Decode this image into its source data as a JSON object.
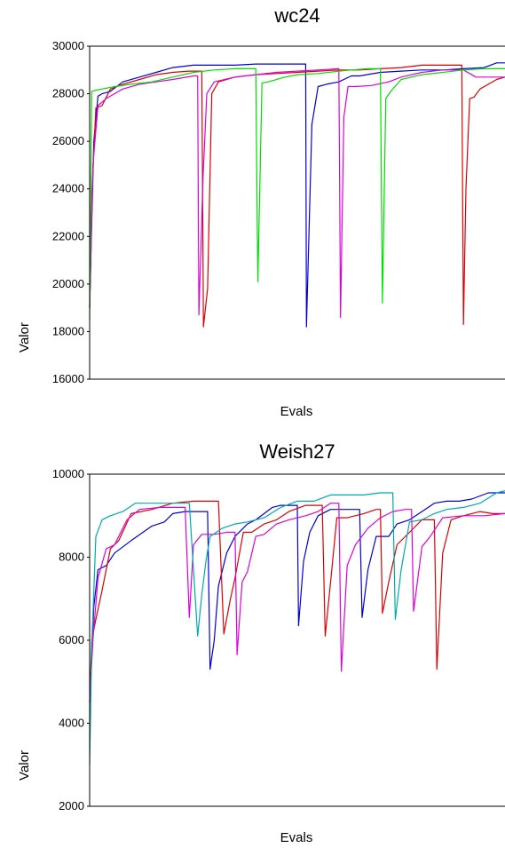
{
  "chart_data": [
    {
      "type": "line",
      "title": "wc24",
      "xlabel": "Evals",
      "ylabel": "Valor",
      "ylim": [
        16000,
        30000
      ],
      "yticks": [
        16000,
        18000,
        20000,
        22000,
        24000,
        26000,
        28000,
        30000
      ],
      "xlim": [
        0,
        100
      ],
      "grid": false,
      "series": [
        {
          "color": "#0000dd",
          "x": [
            0,
            1,
            2,
            3,
            5,
            8,
            12,
            16,
            20,
            25,
            30,
            35,
            40,
            45,
            50,
            52,
            52.2,
            53.5,
            55,
            57,
            60,
            63,
            65,
            70,
            75,
            80,
            85,
            90,
            95,
            98,
            100
          ],
          "y": [
            19000,
            26000,
            27900,
            28000,
            28100,
            28500,
            28700,
            28900,
            29100,
            29200,
            29200,
            29200,
            29250,
            29250,
            29250,
            29250,
            18200,
            26700,
            28300,
            28400,
            28500,
            28750,
            28750,
            28900,
            28950,
            29000,
            29000,
            29050,
            29100,
            29300,
            29300
          ]
        },
        {
          "color": "#dd0000",
          "x": [
            0,
            0.6,
            1.5,
            3,
            5,
            8,
            12,
            16,
            20,
            23.8,
            24,
            27,
            27.4,
            28.4,
            29.4,
            31,
            35,
            40,
            45,
            50,
            55,
            60,
            65,
            70,
            75,
            80,
            85,
            87,
            89.6,
            90,
            90.6,
            91.5,
            92.5,
            94,
            96,
            98,
            100
          ],
          "y": [
            19000,
            24000,
            27400,
            27500,
            28200,
            28400,
            28600,
            28800,
            28900,
            28950,
            28950,
            28950,
            18200,
            19800,
            28000,
            28500,
            28700,
            28800,
            28850,
            28900,
            28950,
            29000,
            29000,
            29050,
            29100,
            29200,
            29200,
            29200,
            29200,
            18300,
            24000,
            27800,
            27850,
            28200,
            28400,
            28600,
            28700
          ]
        },
        {
          "color": "#dd00dd",
          "x": [
            0,
            0.8,
            2,
            4,
            8,
            12,
            16,
            20,
            25,
            26,
            26.3,
            27.3,
            28.2,
            30,
            35,
            40,
            45,
            50,
            55,
            60,
            60.4,
            61.2,
            62.2,
            64,
            68,
            72,
            75,
            80,
            85,
            90,
            93,
            96,
            100
          ],
          "y": [
            19000,
            25000,
            27500,
            27800,
            28200,
            28400,
            28500,
            28600,
            28750,
            28750,
            18700,
            24500,
            28000,
            28500,
            28700,
            28800,
            28900,
            28950,
            29000,
            29050,
            18600,
            27000,
            28300,
            28300,
            28350,
            28500,
            28700,
            28900,
            29000,
            29000,
            28700,
            28700,
            28700
          ]
        },
        {
          "color": "#00dd00",
          "x": [
            0,
            0.5,
            1.5,
            3,
            6,
            10,
            15,
            20,
            25,
            30,
            35,
            40,
            40.5,
            41.5,
            43,
            47,
            50,
            55,
            60,
            63,
            67,
            70,
            70.5,
            71.3,
            72.5,
            75,
            80,
            85,
            90,
            95,
            100
          ],
          "y": [
            18500,
            28100,
            28150,
            28200,
            28300,
            28400,
            28500,
            28700,
            28900,
            29000,
            29050,
            29050,
            20100,
            28450,
            28500,
            28700,
            28800,
            28850,
            28950,
            29000,
            29050,
            29050,
            19200,
            27800,
            28100,
            28600,
            28800,
            28900,
            29000,
            29050,
            29050
          ]
        }
      ]
    },
    {
      "type": "line",
      "title": "Weish27",
      "xlabel": "Evals",
      "ylabel": "Valor",
      "ylim": [
        2000,
        10000
      ],
      "yticks": [
        2000,
        4000,
        6000,
        8000,
        10000
      ],
      "xlim": [
        0,
        100
      ],
      "grid": false,
      "series": [
        {
          "color": "#0000dd",
          "x": [
            0,
            1,
            2,
            4,
            6,
            10,
            15,
            18,
            20,
            23,
            25,
            28.4,
            29,
            30,
            31,
            33,
            35,
            38,
            40,
            42,
            44,
            46,
            48,
            50,
            50.3,
            51.5,
            53,
            55,
            58,
            62,
            64,
            65,
            65.6,
            67,
            69,
            72,
            74,
            77,
            80,
            83,
            86,
            89,
            92,
            96,
            100
          ],
          "y": [
            4500,
            6800,
            7700,
            7800,
            8100,
            8400,
            8750,
            8850,
            9050,
            9100,
            9100,
            9100,
            5300,
            6000,
            7300,
            8100,
            8500,
            8800,
            8900,
            9050,
            9200,
            9250,
            9250,
            9250,
            6350,
            7900,
            8600,
            9000,
            9150,
            9150,
            9150,
            9150,
            6550,
            7700,
            8500,
            8500,
            8800,
            8900,
            9100,
            9300,
            9350,
            9350,
            9400,
            9550,
            9550
          ]
        },
        {
          "color": "#dd0000",
          "x": [
            0,
            0.5,
            1.5,
            3,
            5,
            7,
            10,
            15,
            20,
            25,
            30,
            31,
            32.3,
            33.8,
            35,
            37,
            39,
            42,
            45,
            48,
            52,
            56,
            56.7,
            58.2,
            59.5,
            62,
            66,
            69,
            70,
            70.5,
            72,
            74,
            77,
            80,
            82,
            83,
            83.6,
            85,
            87,
            90,
            94,
            97,
            100
          ],
          "y": [
            4500,
            6000,
            6500,
            7200,
            8200,
            8400,
            9050,
            9150,
            9300,
            9350,
            9350,
            9350,
            6150,
            6950,
            7500,
            8600,
            8600,
            8800,
            8900,
            9100,
            9250,
            9250,
            6100,
            7600,
            8950,
            8950,
            9050,
            9150,
            9150,
            6650,
            7400,
            8300,
            8600,
            8900,
            8900,
            8900,
            5300,
            8100,
            8900,
            9000,
            9100,
            9050,
            9050
          ]
        },
        {
          "color": "#dd00dd",
          "x": [
            0,
            0.8,
            2,
            4,
            6,
            9,
            12,
            17,
            22,
            23,
            24,
            25,
            27,
            30,
            33,
            35,
            35.5,
            36.7,
            38,
            40,
            42,
            45,
            48,
            52,
            55,
            58,
            60,
            60.6,
            62,
            64,
            67,
            70,
            73,
            76,
            77.5,
            78,
            80,
            82,
            85,
            90,
            95,
            100
          ],
          "y": [
            4500,
            6000,
            7500,
            8200,
            8300,
            8900,
            9150,
            9200,
            9200,
            9200,
            6550,
            8300,
            8550,
            8550,
            8600,
            8600,
            5650,
            7400,
            7650,
            8500,
            8550,
            8800,
            8900,
            9000,
            9100,
            9300,
            9300,
            5250,
            7800,
            8300,
            8700,
            8950,
            9100,
            9150,
            9150,
            6700,
            8250,
            8500,
            8950,
            9000,
            9000,
            9050
          ]
        },
        {
          "color": "#00aaaa",
          "x": [
            0,
            0.5,
            1.5,
            3,
            5,
            8,
            11,
            14,
            17,
            20,
            23,
            24,
            26,
            27,
            28,
            29,
            32,
            35,
            38,
            42,
            46,
            50,
            54,
            58,
            62,
            66,
            70,
            73,
            73.6,
            75,
            77,
            80,
            83,
            86,
            90,
            94,
            98,
            100
          ],
          "y": [
            3000,
            5800,
            8500,
            8900,
            9000,
            9100,
            9300,
            9300,
            9300,
            9300,
            9300,
            9300,
            6100,
            7100,
            7900,
            8500,
            8700,
            8800,
            8850,
            8950,
            9200,
            9350,
            9350,
            9500,
            9500,
            9500,
            9550,
            9550,
            6500,
            7700,
            8850,
            8900,
            9050,
            9150,
            9200,
            9300,
            9550,
            9600
          ]
        }
      ]
    }
  ]
}
